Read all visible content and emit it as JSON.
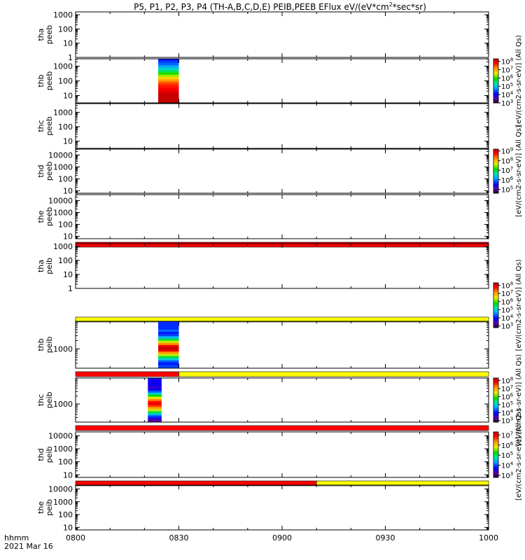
{
  "chart_data": {
    "type": "heatmap",
    "title": "P5, P1, P2, P3, P4 (TH-A,B,C,D,E) PEIB,PEEB EFlux eV/(eV*cm²*sec*sr)",
    "title_main": "P5, P1, P2, P3, P4 (TH-A,B,C,D,E) PEIB,PEEB EFlux eV/(eV*cm",
    "title_sup": "2",
    "title_tail": "*sec*sr)",
    "xlabel_top": "hhmm",
    "xlabel_bottom": "2021 Mar 16",
    "x_ticks": [
      "0800",
      "0830",
      "0900",
      "0930",
      "1000"
    ],
    "x_range": [
      "08:00",
      "10:00"
    ],
    "colorbars": [
      {
        "label": "[eV/(cm2-s-sr-eV)] (All Qs)",
        "tick_exponents": [
          3,
          4,
          5,
          6,
          7,
          8
        ],
        "range": [
          3,
          8.3
        ]
      },
      {
        "label": "[eV/(cm2-s-sr-eV)] (All Qs)",
        "tick_exponents": [
          5,
          6,
          7,
          8,
          9
        ],
        "range": [
          4.6,
          9.2
        ]
      },
      {
        "label": "[eV/(cm2-s-sr-eV)] (All Qs)",
        "tick_exponents": [
          3,
          4,
          5,
          6,
          7,
          8
        ],
        "range": [
          2.8,
          8.3
        ]
      },
      {
        "label": "[eV/(cm2-s-sr-eV)] (All Qs)",
        "tick_exponents": [
          3,
          4,
          5,
          6,
          7,
          8
        ],
        "range": [
          2.8,
          8.3
        ]
      },
      {
        "label": "[eV/(cm2-s-sr-eV)] (All Qs)",
        "tick_exponents": [
          3,
          4,
          5,
          6,
          7
        ],
        "range": [
          2.8,
          7.3
        ]
      }
    ],
    "panels": [
      {
        "name": "tha",
        "sub": "peeb",
        "ylog": [
          0,
          3.2
        ],
        "ticks": [
          "1",
          "10",
          "100",
          "1000"
        ],
        "tick_values": [
          1,
          10,
          100,
          1000
        ],
        "mode_bar": []
      },
      {
        "name": "thb",
        "sub": "peeb",
        "ylog": [
          0.5,
          3.5
        ],
        "ticks": [
          "10",
          "100",
          "1000"
        ],
        "tick_values": [
          10,
          100,
          1000
        ],
        "mode_bar": [],
        "spectrogram": {
          "start": "08:24",
          "end": "08:30",
          "e_levels": [
            5,
            7,
            9,
            12,
            16,
            22,
            30,
            42,
            58,
            80,
            110,
            160,
            230,
            330,
            480,
            700,
            1000,
            1500,
            2200,
            3200
          ],
          "levels": [
            8.4,
            8.4,
            8.4,
            8.3,
            8.2,
            8.0,
            7.9,
            7.8,
            7.7,
            7.5,
            7.2,
            6.8,
            6.4,
            6.0,
            5.6,
            5.2,
            4.8,
            4.5,
            4.3,
            4.1
          ]
        }
      },
      {
        "name": "thc",
        "sub": "peeb",
        "ylog": [
          0.5,
          3.6
        ],
        "ticks": [
          "10",
          "100",
          "1000"
        ],
        "tick_values": [
          10,
          100,
          1000
        ],
        "mode_bar": []
      },
      {
        "name": "thd",
        "sub": "peeb",
        "ylog": [
          0.8,
          4.5
        ],
        "ticks": [
          "10",
          "100",
          "1000",
          "10000"
        ],
        "tick_values": [
          10,
          100,
          1000,
          10000
        ],
        "mode_bar": []
      },
      {
        "name": "the",
        "sub": "peeb",
        "ylog": [
          0.8,
          4.5
        ],
        "ticks": [
          "10",
          "100",
          "1000",
          "10000"
        ],
        "tick_values": [
          10,
          100,
          1000,
          10000
        ],
        "mode_bar": [
          {
            "start": "08:00",
            "end": "10:00",
            "color": "#ff0000"
          }
        ]
      },
      {
        "name": "tha",
        "sub": "peib",
        "ylog": [
          0,
          3.2
        ],
        "ticks": [
          "1",
          "10",
          "100",
          "1000"
        ],
        "tick_values": [
          1,
          10,
          100,
          1000
        ],
        "mode_bar": [
          {
            "start": "08:00",
            "end": "10:00",
            "color": "#ffff00"
          }
        ]
      },
      {
        "name": "thb",
        "sub": "peib",
        "ylog": [
          2.3,
          4.0
        ],
        "ticks": [
          "1000"
        ],
        "tick_values": [
          1000
        ],
        "mode_bar": [
          {
            "start": "08:00",
            "end": "08:30",
            "color": "#ff0000"
          },
          {
            "start": "08:30",
            "end": "10:00",
            "color": "#ffff00"
          }
        ],
        "spectrogram": {
          "start": "08:24",
          "end": "08:30",
          "e_levels": [
            250,
            300,
            360,
            430,
            520,
            620,
            750,
            900,
            1080,
            1300,
            1560,
            1870,
            2250,
            2700,
            3250,
            3900,
            4700,
            5600
          ],
          "levels": [
            4.2,
            4.0,
            4.3,
            5.0,
            5.6,
            6.4,
            7.2,
            8.0,
            8.4,
            8.0,
            7.2,
            6.4,
            5.6,
            4.8,
            4.2,
            4.0,
            4.4,
            4.1
          ]
        }
      },
      {
        "name": "thc",
        "sub": "peib",
        "ylog": [
          2.3,
          4.0
        ],
        "ticks": [
          "1000"
        ],
        "tick_values": [
          1000
        ],
        "mode_bar": [
          {
            "start": "08:00",
            "end": "10:00",
            "color": "#ff0000"
          }
        ],
        "spectrogram": {
          "start": "08:21",
          "end": "08:25",
          "e_levels": [
            230,
            280,
            340,
            410,
            490,
            590,
            710,
            860,
            1030,
            1240,
            1490,
            1790,
            2150,
            2580,
            3100,
            3720,
            4460,
            5350
          ],
          "levels": [
            3.3,
            3.7,
            4.2,
            4.9,
            5.6,
            6.4,
            7.1,
            7.6,
            8.0,
            7.8,
            7.2,
            6.5,
            5.8,
            5.0,
            4.3,
            3.8,
            3.6,
            3.8
          ]
        }
      },
      {
        "name": "thd",
        "sub": "peib",
        "ylog": [
          0.8,
          4.3
        ],
        "ticks": [
          "10",
          "100",
          "1000",
          "10000"
        ],
        "tick_values": [
          10,
          100,
          1000,
          10000
        ],
        "mode_bar": [
          {
            "start": "08:00",
            "end": "09:10",
            "color": "#ff0000"
          },
          {
            "start": "09:10",
            "end": "10:00",
            "color": "#ffff00"
          }
        ]
      },
      {
        "name": "the",
        "sub": "peib",
        "ylog": [
          0.8,
          4.3
        ],
        "ticks": [
          "10",
          "100",
          "1000",
          "10000"
        ],
        "tick_values": [
          10,
          100,
          1000,
          10000
        ],
        "mode_bar": []
      }
    ]
  }
}
